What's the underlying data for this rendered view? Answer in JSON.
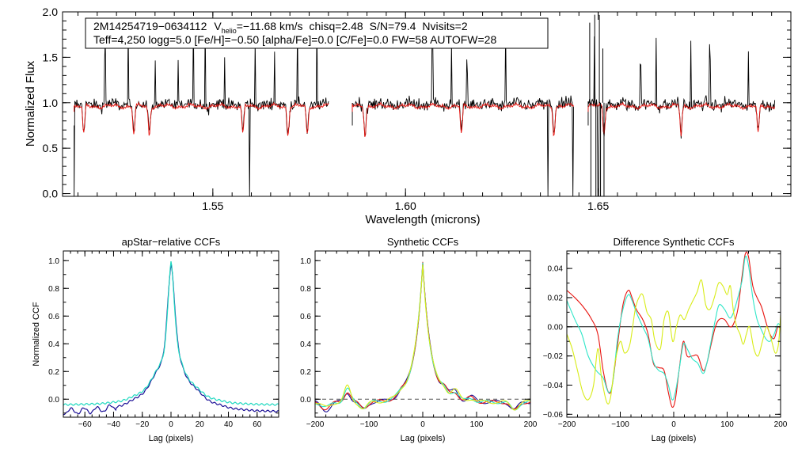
{
  "chart_data": [
    {
      "type": "line",
      "id": "spectrum",
      "title": "",
      "xlabel": "Wavelength (microns)",
      "ylabel": "Normalized Flux",
      "xlim": [
        1.511,
        1.7
      ],
      "ylim": [
        -0.03,
        2.0
      ],
      "xticks": [
        1.55,
        1.6,
        1.65
      ],
      "xtick_labels": [
        "1.55",
        "1.60",
        "1.65"
      ],
      "yticks": [
        0.0,
        0.5,
        1.0,
        1.5,
        2.0
      ],
      "ytick_labels": [
        "0.0",
        "0.5",
        "1.0",
        "1.5",
        "2.0"
      ],
      "annotation": {
        "star_id": "2M14254719−0634112",
        "vhelio_label": "V",
        "vhelio_sub": "helio",
        "vhelio_value": "=−11.68 km/s",
        "chisq": "chisq=2.48",
        "snr": "S/N=79.4",
        "nvisits": "Nvisits=2",
        "line2": "Teff=4,250 logg=5.0 [Fe/H]=−0.50 [alpha/Fe]=0.0 [C/Fe]=0.0 FW=58 AUTOFW=28"
      },
      "chips": [
        [
          1.514,
          1.5802
        ],
        [
          1.5862,
          1.6437
        ],
        [
          1.6474,
          1.696
        ]
      ],
      "model_range": [
        1.514,
        1.696
      ],
      "emission_spikes": [
        1.522,
        1.528,
        1.535,
        1.541,
        1.545,
        1.548,
        1.553,
        1.561,
        1.566,
        1.572,
        1.577,
        1.607,
        1.612,
        1.616,
        1.626,
        1.637,
        1.649,
        1.661,
        1.665,
        1.674,
        1.679,
        1.689
      ],
      "absorption_dips": [
        1.5165,
        1.5295,
        1.5335,
        1.5578,
        1.5695,
        1.5745,
        1.5895,
        1.6145,
        1.6385,
        1.6515,
        1.6715,
        1.6915
      ],
      "dropouts": [
        1.514,
        1.5595,
        1.637,
        1.6435,
        1.65
      ],
      "series": [
        {
          "name": "observed",
          "color": "#000000"
        },
        {
          "name": "model",
          "color": "#e8140f"
        }
      ]
    },
    {
      "type": "line",
      "id": "apstar_ccf",
      "title": "apStar−relative CCFs",
      "xlabel": "Lag (pixels)",
      "ylabel": "Normalized CCF",
      "xlim": [
        -75,
        75
      ],
      "ylim": [
        -0.13,
        1.07
      ],
      "xticks": [
        -60,
        -40,
        -20,
        0,
        20,
        40,
        60
      ],
      "xtick_labels": [
        "−60",
        "−40",
        "−20",
        "0",
        "20",
        "40",
        "60"
      ],
      "yticks": [
        0.0,
        0.2,
        0.4,
        0.6,
        0.8,
        1.0
      ],
      "ytick_labels": [
        "0.0",
        "0.2",
        "0.4",
        "0.6",
        "0.8",
        "1.0"
      ],
      "series": [
        {
          "name": "visit 1",
          "color": "#1a0e96",
          "peak": 0.97,
          "width_core": 2.4,
          "width_wing": 17.0,
          "baseline": -0.09
        },
        {
          "name": "visit 2",
          "color": "#1fd9c0",
          "peak": 0.99,
          "width_core": 2.1,
          "width_wing": 14.5,
          "baseline": -0.04
        }
      ]
    },
    {
      "type": "line",
      "id": "synthetic_ccf",
      "title": "Synthetic CCFs",
      "xlabel": "Lag (pixels)",
      "ylabel": "",
      "xlim": [
        -200,
        200
      ],
      "ylim": [
        -0.13,
        1.07
      ],
      "xticks": [
        -200,
        -100,
        0,
        100,
        200
      ],
      "xtick_labels": [
        "−200",
        "−100",
        "0",
        "100",
        "200"
      ],
      "yticks": [
        0.0,
        0.2,
        0.4,
        0.6,
        0.8,
        1.0
      ],
      "ytick_labels": [
        "0.0",
        "0.2",
        "0.4",
        "0.6",
        "0.8",
        "1.0"
      ],
      "hline": 0.0,
      "series": [
        {
          "name": "combined",
          "color": "#1a0e96"
        },
        {
          "name": "visit 1",
          "color": "#e8140f"
        },
        {
          "name": "visit 2",
          "color": "#2ee6c8"
        },
        {
          "name": "visit 3",
          "color": "#d8ec18"
        }
      ]
    },
    {
      "type": "line",
      "id": "diff_ccf",
      "title": "Difference Synthetic CCFs",
      "xlabel": "Lag (pixels)",
      "ylabel": "",
      "xlim": [
        -200,
        200
      ],
      "ylim": [
        -0.062,
        0.052
      ],
      "xticks": [
        -200,
        -100,
        0,
        100,
        200
      ],
      "xtick_labels": [
        "−200",
        "−100",
        "0",
        "100",
        "200"
      ],
      "yticks": [
        -0.06,
        -0.04,
        -0.02,
        0.0,
        0.02,
        0.04
      ],
      "ytick_labels": [
        "−0.06",
        "−0.04",
        "−0.02",
        "0.00",
        "0.02",
        "0.04"
      ],
      "hline": 0.0,
      "series": [
        {
          "name": "visit 1",
          "color": "#e8140f",
          "points": [
            [
              -200,
              0.025
            ],
            [
              -185,
              0.02
            ],
            [
              -170,
              0.014
            ],
            [
              -155,
              0.006
            ],
            [
              -142,
              -0.005
            ],
            [
              -132,
              -0.03
            ],
            [
              -122,
              -0.045
            ],
            [
              -115,
              -0.04
            ],
            [
              -105,
              -0.012
            ],
            [
              -95,
              0.015
            ],
            [
              -85,
              0.025
            ],
            [
              -78,
              0.02
            ],
            [
              -70,
              0.012
            ],
            [
              -58,
              0.005
            ],
            [
              -48,
              -0.005
            ],
            [
              -38,
              -0.025
            ],
            [
              -28,
              -0.028
            ],
            [
              -18,
              -0.03
            ],
            [
              -10,
              -0.045
            ],
            [
              -3,
              -0.055
            ],
            [
              3,
              -0.05
            ],
            [
              10,
              -0.03
            ],
            [
              18,
              -0.01
            ],
            [
              25,
              -0.02
            ],
            [
              35,
              -0.02
            ],
            [
              45,
              -0.02
            ],
            [
              55,
              -0.03
            ],
            [
              62,
              -0.025
            ],
            [
              70,
              -0.012
            ],
            [
              78,
              0.0
            ],
            [
              85,
              0.005
            ],
            [
              95,
              0.005
            ],
            [
              105,
              0.0
            ],
            [
              112,
              0.002
            ],
            [
              120,
              0.012
            ],
            [
              128,
              0.035
            ],
            [
              134,
              0.05
            ],
            [
              140,
              0.048
            ],
            [
              148,
              0.028
            ],
            [
              156,
              0.02
            ],
            [
              164,
              0.014
            ],
            [
              172,
              0.004
            ],
            [
              180,
              -0.005
            ],
            [
              188,
              -0.008
            ],
            [
              195,
              0.0
            ],
            [
              200,
              -0.002
            ]
          ]
        },
        {
          "name": "visit 2",
          "color": "#2ee6c8",
          "points": [
            [
              -200,
              0.018
            ],
            [
              -185,
              0.005
            ],
            [
              -172,
              -0.005
            ],
            [
              -160,
              -0.02
            ],
            [
              -145,
              -0.03
            ],
            [
              -132,
              -0.035
            ],
            [
              -122,
              -0.045
            ],
            [
              -114,
              -0.038
            ],
            [
              -105,
              -0.008
            ],
            [
              -95,
              0.012
            ],
            [
              -85,
              0.022
            ],
            [
              -78,
              0.018
            ],
            [
              -70,
              0.01
            ],
            [
              -58,
              0.0
            ],
            [
              -48,
              -0.008
            ],
            [
              -38,
              -0.024
            ],
            [
              -28,
              -0.03
            ],
            [
              -18,
              -0.032
            ],
            [
              -10,
              -0.04
            ],
            [
              -3,
              -0.05
            ],
            [
              3,
              -0.045
            ],
            [
              10,
              -0.03
            ],
            [
              18,
              -0.012
            ],
            [
              25,
              -0.015
            ],
            [
              35,
              -0.022
            ],
            [
              45,
              -0.025
            ],
            [
              55,
              -0.032
            ],
            [
              62,
              -0.025
            ],
            [
              70,
              -0.01
            ],
            [
              78,
              0.005
            ],
            [
              85,
              0.015
            ],
            [
              95,
              0.012
            ],
            [
              105,
              0.006
            ],
            [
              112,
              0.01
            ],
            [
              120,
              0.02
            ],
            [
              128,
              0.032
            ],
            [
              134,
              0.048
            ],
            [
              140,
              0.042
            ],
            [
              148,
              0.02
            ],
            [
              156,
              0.005
            ],
            [
              164,
              -0.002
            ],
            [
              172,
              -0.008
            ],
            [
              180,
              -0.01
            ],
            [
              188,
              -0.005
            ],
            [
              195,
              0.002
            ],
            [
              200,
              0.0
            ]
          ]
        },
        {
          "name": "visit 3",
          "color": "#d8ec18",
          "points": [
            [
              -200,
              -0.005
            ],
            [
              -190,
              -0.015
            ],
            [
              -180,
              -0.03
            ],
            [
              -170,
              -0.045
            ],
            [
              -160,
              -0.05
            ],
            [
              -150,
              -0.04
            ],
            [
              -142,
              -0.015
            ],
            [
              -135,
              -0.035
            ],
            [
              -125,
              -0.052
            ],
            [
              -118,
              -0.048
            ],
            [
              -110,
              -0.025
            ],
            [
              -100,
              -0.01
            ],
            [
              -92,
              -0.018
            ],
            [
              -82,
              -0.012
            ],
            [
              -72,
              0.012
            ],
            [
              -65,
              0.02
            ],
            [
              -58,
              0.022
            ],
            [
              -50,
              0.01
            ],
            [
              -42,
              0.005
            ],
            [
              -35,
              -0.01
            ],
            [
              -25,
              -0.015
            ],
            [
              -18,
              0.005
            ],
            [
              -10,
              0.01
            ],
            [
              -2,
              -0.01
            ],
            [
              5,
              0.0
            ],
            [
              12,
              0.008
            ],
            [
              20,
              0.005
            ],
            [
              28,
              0.012
            ],
            [
              36,
              0.018
            ],
            [
              44,
              0.024
            ],
            [
              52,
              0.032
            ],
            [
              60,
              0.015
            ],
            [
              68,
              0.012
            ],
            [
              76,
              0.02
            ],
            [
              84,
              0.03
            ],
            [
              92,
              0.028
            ],
            [
              100,
              0.022
            ],
            [
              106,
              0.028
            ],
            [
              112,
              0.01
            ],
            [
              118,
              0.0
            ],
            [
              124,
              -0.005
            ],
            [
              130,
              -0.012
            ],
            [
              136,
              -0.005
            ],
            [
              142,
              0.0
            ],
            [
              150,
              -0.015
            ],
            [
              158,
              -0.02
            ],
            [
              166,
              -0.01
            ],
            [
              174,
              0.0
            ],
            [
              182,
              -0.008
            ],
            [
              190,
              -0.018
            ],
            [
              196,
              -0.012
            ],
            [
              200,
              0.008
            ]
          ]
        }
      ]
    }
  ]
}
